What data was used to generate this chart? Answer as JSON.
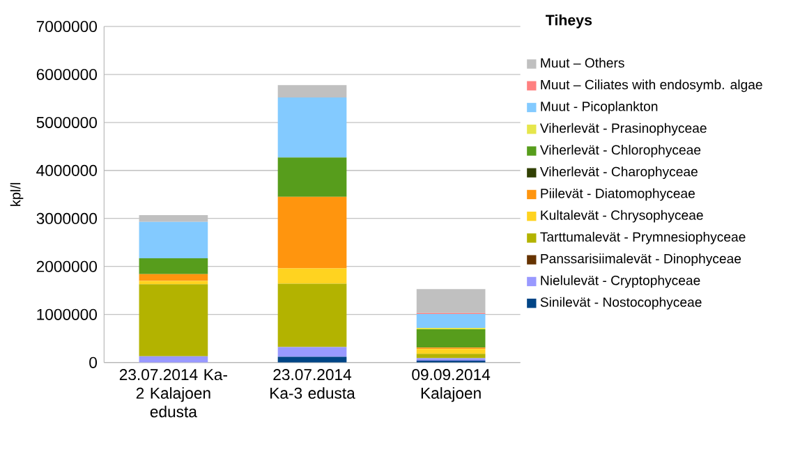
{
  "chart_data": {
    "type": "bar",
    "stacked": true,
    "ylabel": "kpl/l",
    "legend_title": "Tiheys",
    "legend": "right",
    "grid": "y",
    "categories": [
      "23.07.2014 Ka-2 Kalajoen edusta",
      "23.07.2014 Ka-3 edusta",
      "09.09.2014 Kalajoen"
    ],
    "ylim": [
      0,
      7000000
    ],
    "yticks": [
      0,
      1000000,
      2000000,
      3000000,
      4000000,
      5000000,
      6000000,
      7000000
    ],
    "series": [
      {
        "name": "Sinilevät - Nostocophyceae",
        "color": "#004586",
        "values": [
          0,
          120000,
          40000
        ]
      },
      {
        "name": "Nielulevät - Cryptophyceae",
        "color": "#9999ff",
        "values": [
          130000,
          200000,
          50000
        ]
      },
      {
        "name": "Panssarisiimalevät - Dinophyceae",
        "color": "#663300",
        "values": [
          0,
          0,
          0
        ]
      },
      {
        "name": "Tarttumalevät - Prymnesiophyceae",
        "color": "#b3b300",
        "values": [
          1500000,
          1320000,
          90000
        ]
      },
      {
        "name": "Kultalevät - Chrysophyceae",
        "color": "#ffd320",
        "values": [
          70000,
          320000,
          100000
        ]
      },
      {
        "name": "Piilevät - Diatomophyceae",
        "color": "#ff950e",
        "values": [
          140000,
          1490000,
          30000
        ]
      },
      {
        "name": "Viherlevät - Charophyceae",
        "color": "#314004",
        "values": [
          0,
          0,
          0
        ]
      },
      {
        "name": "Viherlevät - Chlorophyceae",
        "color": "#579d1c",
        "values": [
          330000,
          820000,
          380000
        ]
      },
      {
        "name": "Viherlevät - Prasinophyceae",
        "color": "#e6e64c",
        "values": [
          0,
          0,
          30000
        ]
      },
      {
        "name": "Muut - Picoplankton",
        "color": "#83caff",
        "values": [
          760000,
          1250000,
          290000
        ]
      },
      {
        "name": "Muut – Ciliates with endosymb. algae",
        "color": "#ff8080",
        "values": [
          0,
          0,
          20000
        ]
      },
      {
        "name": "Muut – Others",
        "color": "#c0c0c0",
        "values": [
          140000,
          260000,
          500000
        ]
      }
    ]
  }
}
